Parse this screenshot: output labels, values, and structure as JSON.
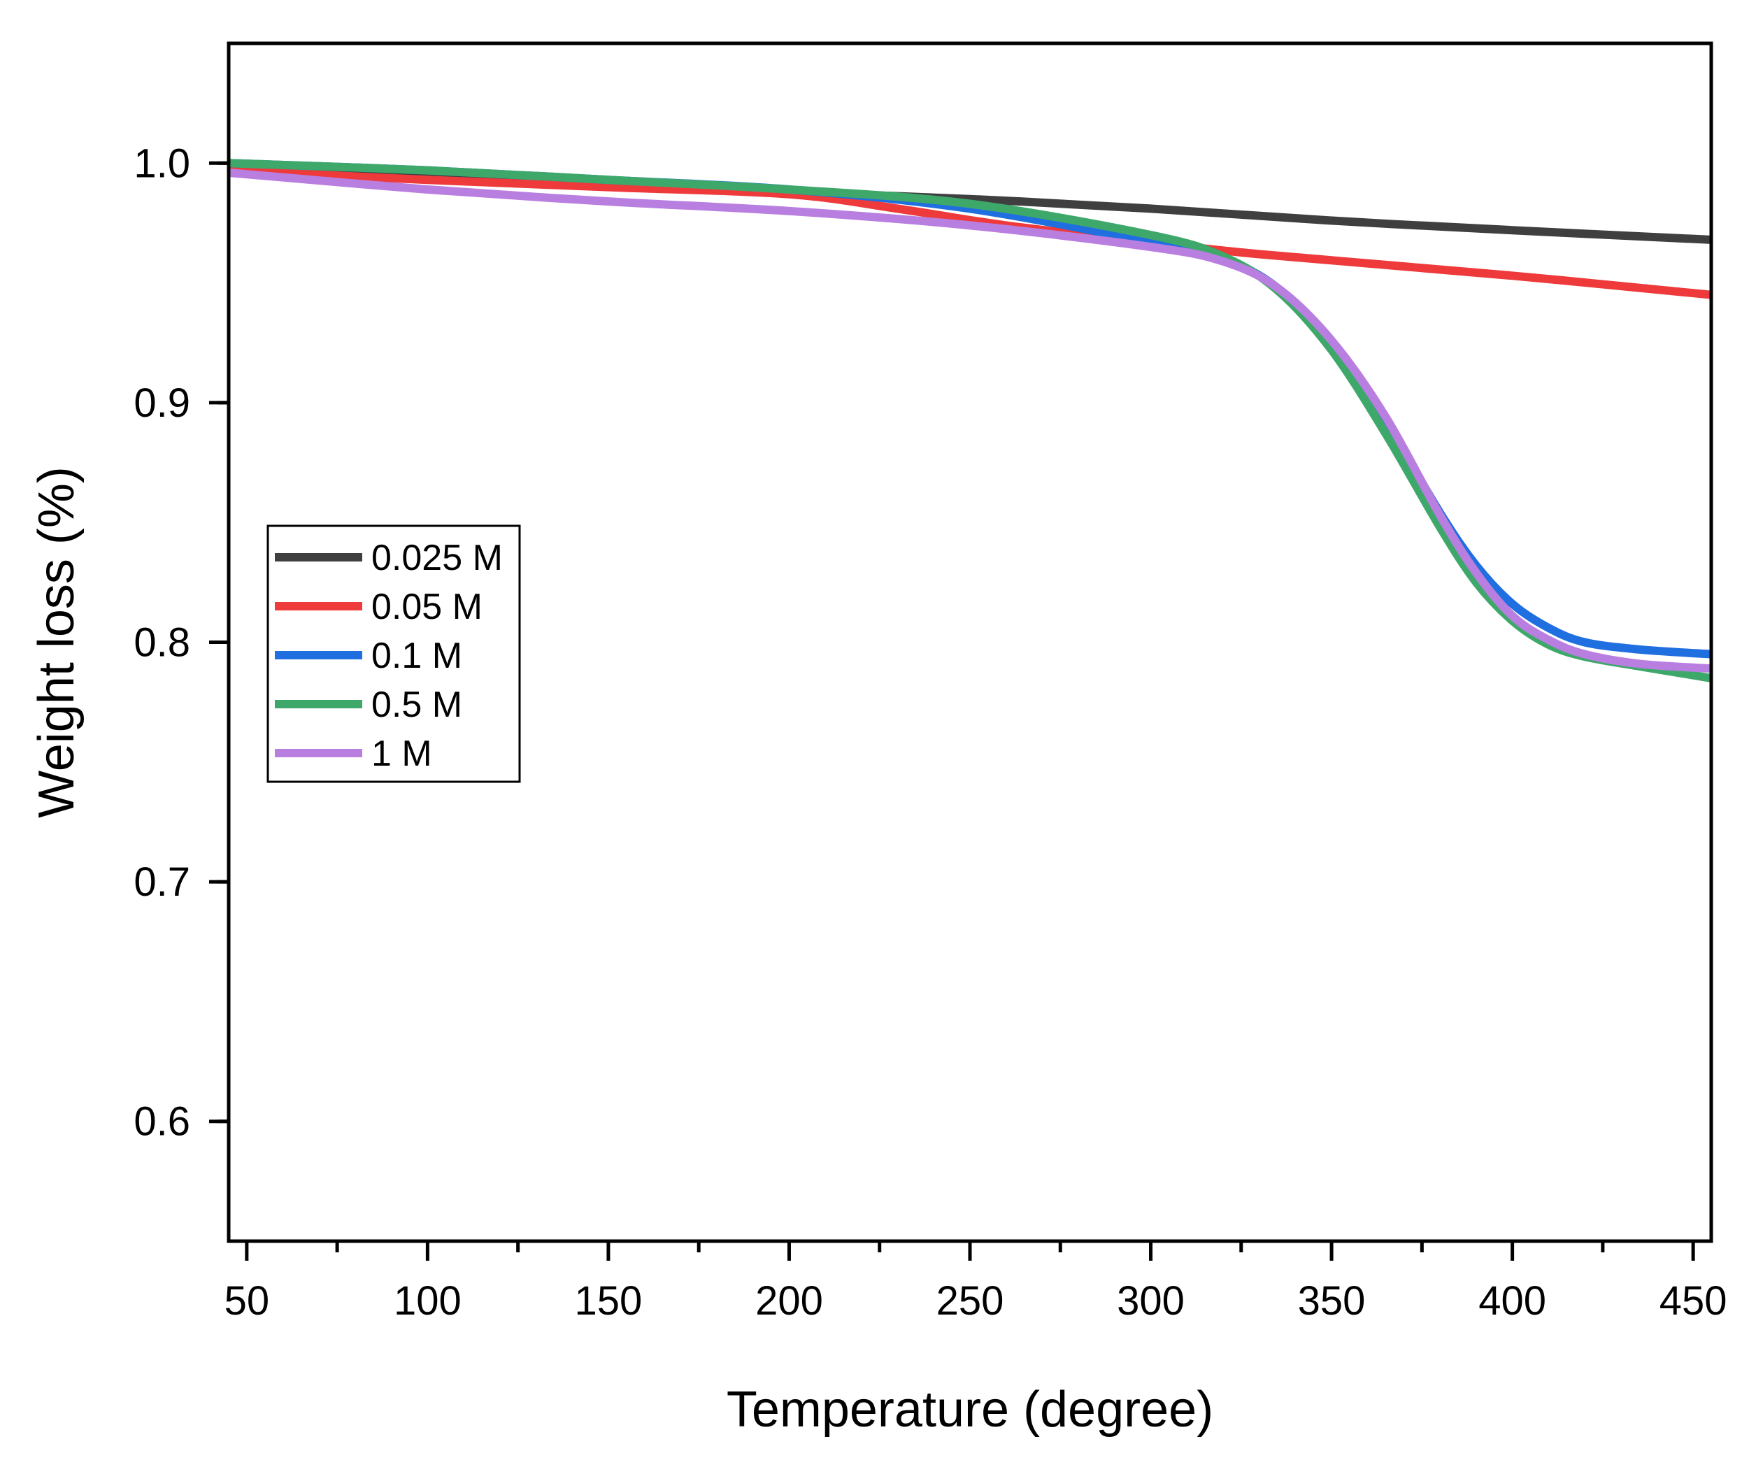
{
  "chart_data": {
    "type": "line",
    "title": "",
    "xlabel": "Temperature (degree)",
    "ylabel": "Weight loss (%)",
    "xlim": [
      45,
      455
    ],
    "ylim": [
      0.55,
      1.05
    ],
    "xticks": [
      50,
      100,
      150,
      200,
      250,
      300,
      350,
      400,
      450
    ],
    "xtick_labels": [
      "50",
      "100",
      "150",
      "200",
      "250",
      "300",
      "350",
      "400",
      "450"
    ],
    "yticks": [
      0.6,
      0.7,
      0.8,
      0.9,
      1.0
    ],
    "ytick_labels": [
      "0.6",
      "0.7",
      "0.8",
      "0.9",
      "1.0"
    ],
    "grid": false,
    "legend_position": "middle-left",
    "series": [
      {
        "name": "0.025 M",
        "color": "#3f3f3f",
        "x": [
          45,
          100,
          150,
          200,
          250,
          300,
          350,
          400,
          455
        ],
        "y": [
          0.999,
          0.995,
          0.991,
          0.988,
          0.985,
          0.981,
          0.976,
          0.972,
          0.968
        ]
      },
      {
        "name": "0.05 M",
        "color": "#ee3a3a",
        "x": [
          45,
          100,
          150,
          200,
          230,
          260,
          300,
          330,
          400,
          455
        ],
        "y": [
          0.997,
          0.993,
          0.99,
          0.987,
          0.981,
          0.974,
          0.967,
          0.962,
          0.953,
          0.945
        ]
      },
      {
        "name": "0.1 M",
        "color": "#1f6fe0",
        "x": [
          45,
          100,
          150,
          200,
          250,
          300,
          320,
          335,
          350,
          365,
          380,
          390,
          400,
          410,
          420,
          435,
          455
        ],
        "y": [
          1.0,
          0.997,
          0.993,
          0.989,
          0.981,
          0.967,
          0.96,
          0.948,
          0.925,
          0.892,
          0.854,
          0.832,
          0.816,
          0.806,
          0.8,
          0.797,
          0.795
        ]
      },
      {
        "name": "0.5 M",
        "color": "#3ea86a",
        "x": [
          45,
          100,
          150,
          200,
          250,
          300,
          320,
          335,
          350,
          365,
          380,
          390,
          400,
          410,
          420,
          435,
          455
        ],
        "y": [
          1.0,
          0.997,
          0.993,
          0.989,
          0.983,
          0.97,
          0.961,
          0.947,
          0.922,
          0.887,
          0.848,
          0.825,
          0.809,
          0.799,
          0.794,
          0.79,
          0.785
        ]
      },
      {
        "name": "1 M",
        "color": "#b97fe0",
        "x": [
          45,
          100,
          150,
          200,
          250,
          300,
          320,
          335,
          350,
          365,
          380,
          390,
          400,
          410,
          420,
          435,
          455
        ],
        "y": [
          0.996,
          0.989,
          0.984,
          0.98,
          0.974,
          0.965,
          0.959,
          0.948,
          0.926,
          0.894,
          0.853,
          0.829,
          0.811,
          0.801,
          0.795,
          0.791,
          0.789
        ]
      }
    ]
  }
}
